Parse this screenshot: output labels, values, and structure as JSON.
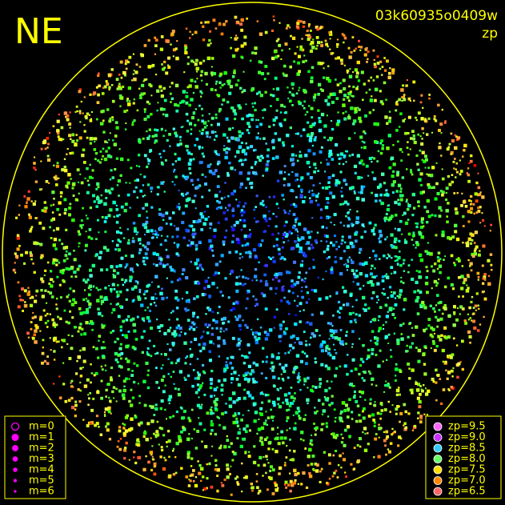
{
  "header": {
    "title": "NE",
    "frame_id": "03k60935o0409w",
    "mode": "zp"
  },
  "legend_m": {
    "items": [
      "m=0",
      "m=1",
      "m=2",
      "m=3",
      "m=4",
      "m=5",
      "m=6"
    ],
    "color": "#ff00ff"
  },
  "legend_zp": {
    "items": [
      {
        "label": "zp=9.5",
        "color": "#ff66ff"
      },
      {
        "label": "zp=9.0",
        "color": "#cc33ff"
      },
      {
        "label": "zp=8.5",
        "color": "#33ccff"
      },
      {
        "label": "zp=8.0",
        "color": "#66ff66"
      },
      {
        "label": "zp=7.5",
        "color": "#ffdd00"
      },
      {
        "label": "zp=7.0",
        "color": "#ff8800"
      },
      {
        "label": "zp=6.5",
        "color": "#ff6666"
      }
    ]
  }
}
